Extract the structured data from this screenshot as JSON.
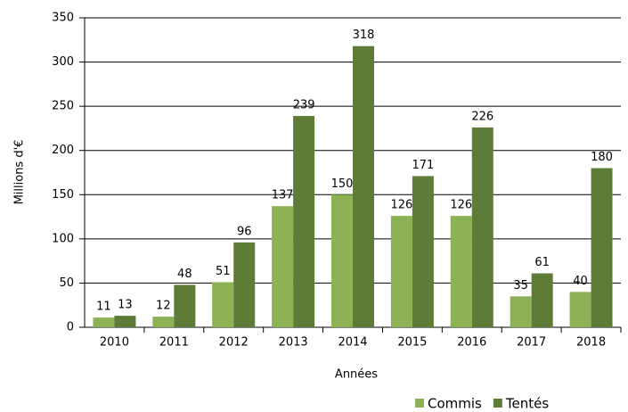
{
  "chart_data": {
    "type": "bar",
    "x_label": "Années",
    "y_label": "Millions d'€",
    "categories": [
      "2010",
      "2011",
      "2012",
      "2013",
      "2014",
      "2015",
      "2016",
      "2017",
      "2018"
    ],
    "series": [
      {
        "name": "Commis",
        "color": "#8db255",
        "values": [
          11,
          12,
          51,
          137,
          150,
          126,
          126,
          35,
          40
        ]
      },
      {
        "name": "Tentés",
        "color": "#5e7b38",
        "values": [
          13,
          48,
          96,
          239,
          318,
          171,
          226,
          61,
          180
        ]
      }
    ],
    "ylim": [
      0,
      350
    ],
    "yticks": [
      0,
      50,
      100,
      150,
      200,
      250,
      300,
      350
    ],
    "grid": true,
    "legend": "bottom-right"
  }
}
